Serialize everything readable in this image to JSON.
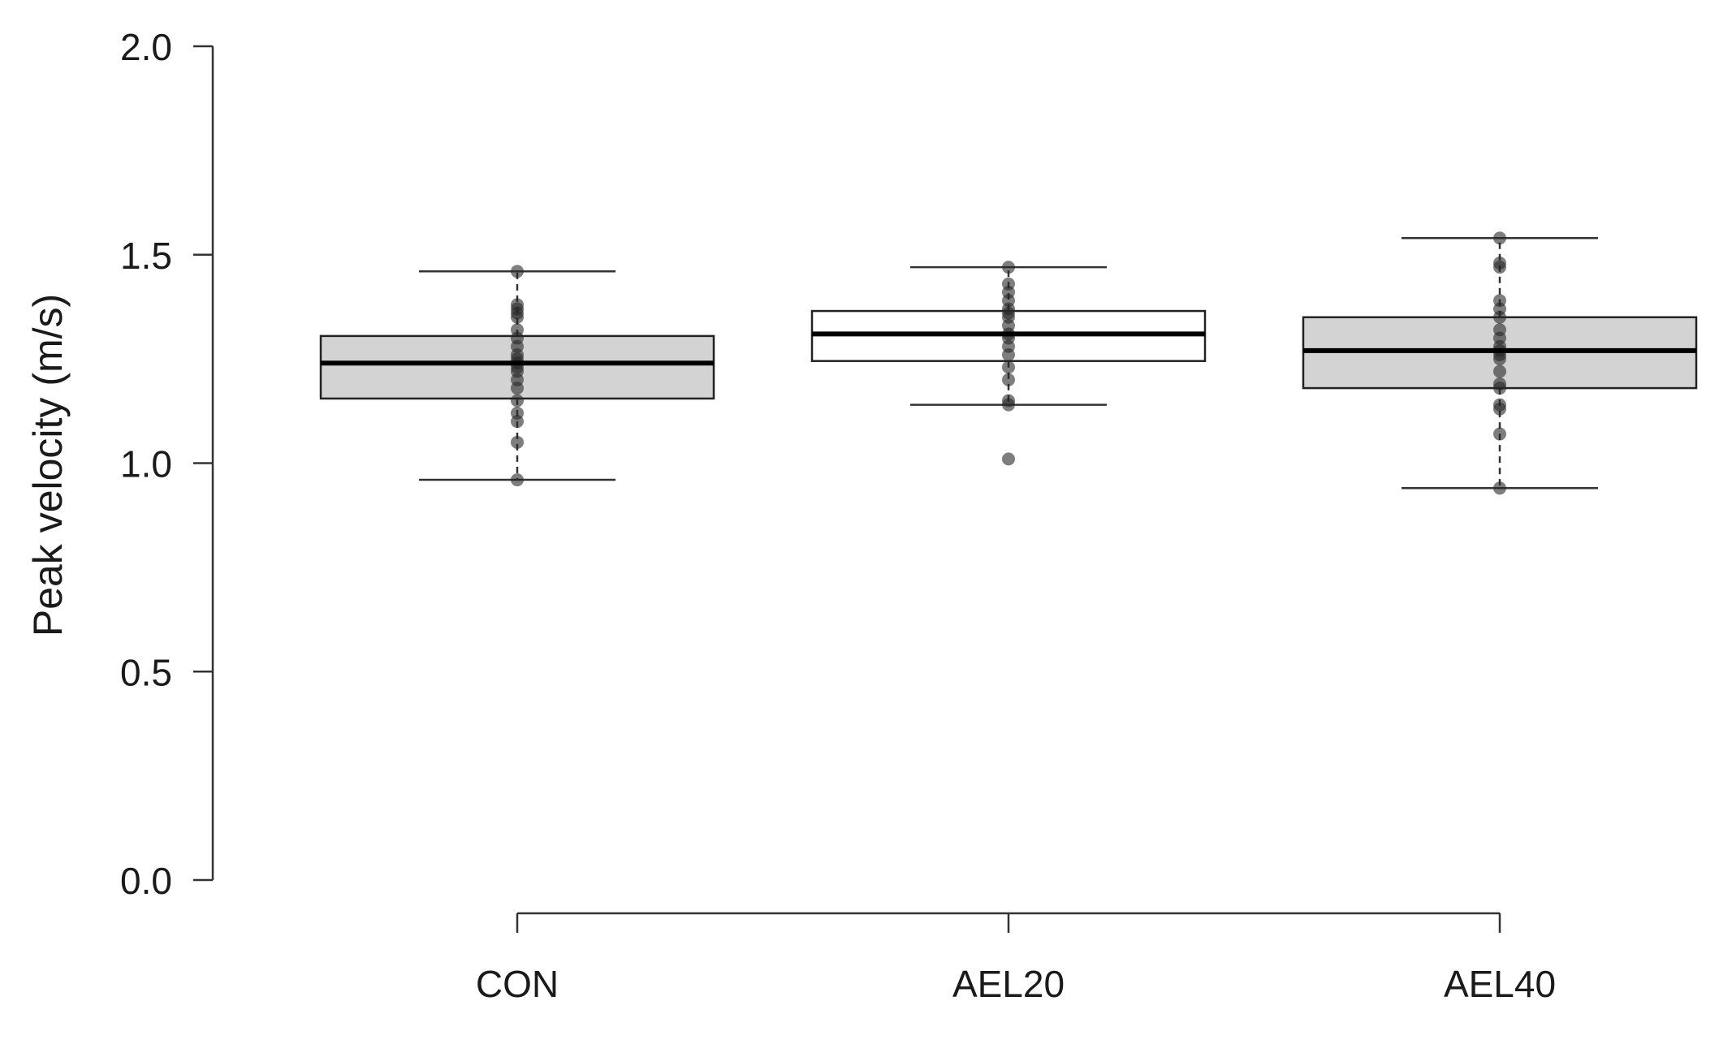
{
  "chart_data": {
    "type": "box",
    "title": "",
    "xlabel": "",
    "ylabel": "Peak velocity (m/s)",
    "ylim": [
      0.0,
      2.0
    ],
    "yticks": [
      "0.0",
      "0.5",
      "1.0",
      "1.5",
      "2.0"
    ],
    "yticks_values": [
      0.0,
      0.5,
      1.0,
      1.5,
      2.0
    ],
    "categories": [
      "CON",
      "AEL20",
      "AEL40"
    ],
    "grid": false,
    "legend": "none",
    "boxes": [
      {
        "category": "CON",
        "fill": "#d3d3d3",
        "whisker_low": 0.96,
        "q1": 1.155,
        "median": 1.24,
        "q3": 1.305,
        "whisker_high": 1.46,
        "points": [
          0.96,
          1.05,
          1.1,
          1.12,
          1.15,
          1.18,
          1.2,
          1.22,
          1.23,
          1.24,
          1.25,
          1.26,
          1.28,
          1.3,
          1.32,
          1.35,
          1.36,
          1.37,
          1.38,
          1.46
        ]
      },
      {
        "category": "AEL20",
        "fill": "#ffffff",
        "whisker_low": 1.14,
        "q1": 1.245,
        "median": 1.31,
        "q3": 1.365,
        "whisker_high": 1.47,
        "points": [
          1.01,
          1.14,
          1.15,
          1.2,
          1.23,
          1.26,
          1.28,
          1.3,
          1.31,
          1.33,
          1.35,
          1.36,
          1.37,
          1.39,
          1.41,
          1.43,
          1.47
        ]
      },
      {
        "category": "AEL40",
        "fill": "#d3d3d3",
        "whisker_low": 0.94,
        "q1": 1.18,
        "median": 1.27,
        "q3": 1.35,
        "whisker_high": 1.54,
        "points": [
          0.94,
          1.07,
          1.13,
          1.14,
          1.18,
          1.19,
          1.22,
          1.25,
          1.26,
          1.27,
          1.28,
          1.3,
          1.32,
          1.35,
          1.37,
          1.39,
          1.47,
          1.48,
          1.54
        ]
      }
    ]
  }
}
